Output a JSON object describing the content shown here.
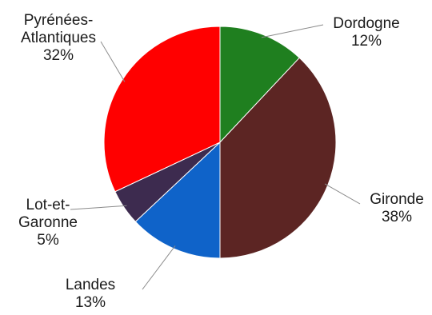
{
  "chart_data": {
    "type": "pie",
    "title": "",
    "start": "12 o'clock",
    "direction": "clockwise",
    "slices": [
      {
        "label": "Dordogne",
        "value": 12,
        "pct_label": "12%",
        "color": "#1f7f1f"
      },
      {
        "label": "Gironde",
        "value": 38,
        "pct_label": "38%",
        "color": "#5c2523"
      },
      {
        "label": "Landes",
        "value": 13,
        "pct_label": "13%",
        "color": "#0f63c9"
      },
      {
        "label": "Lot-et-Garonne",
        "value": 5,
        "pct_label": "5%",
        "color": "#3d2b4f"
      },
      {
        "label": "Pyrénées-Atlantiques",
        "value": 32,
        "pct_label": "32%",
        "color": "#ff0000"
      }
    ]
  }
}
